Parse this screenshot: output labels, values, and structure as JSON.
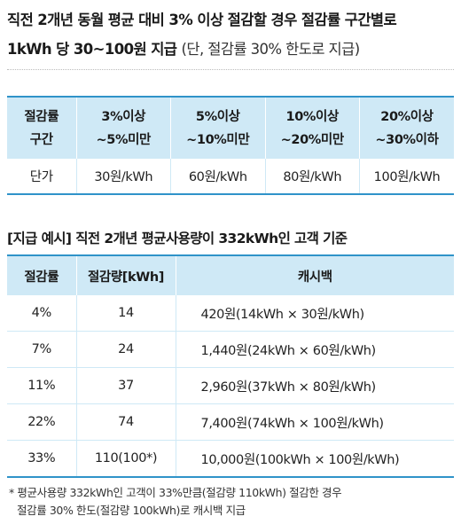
{
  "headline": {
    "bold_line1": "직전 2개년 동월 평균 대비 3% 이상 절감할 경우 절감률 구간별로",
    "bold_line2": "1kWh 당 30~100원 지급",
    "normal": "(단, 절감률 30% 한도로 지급)"
  },
  "rate_table": {
    "headers": [
      {
        "line1": "절감률",
        "line2": "구간"
      },
      {
        "line1": "3%이상",
        "line2": "~5%미만"
      },
      {
        "line1": "5%이상",
        "line2": "~10%미만"
      },
      {
        "line1": "10%이상",
        "line2": "~20%미만"
      },
      {
        "line1": "20%이상",
        "line2": "~30%이하"
      }
    ],
    "row": [
      "단가",
      "30원/kWh",
      "60원/kWh",
      "80원/kWh",
      "100원/kWh"
    ]
  },
  "example": {
    "title": "[지급 예시] 직전 2개년 평균사용량이 332kWh인 고객 기준",
    "headers": [
      "절감률",
      "절감량[kWh]",
      "캐시백"
    ],
    "rows": [
      [
        "4%",
        "14",
        "420원(14kWh × 30원/kWh)"
      ],
      [
        "7%",
        "24",
        "1,440원(24kWh × 60원/kWh)"
      ],
      [
        "11%",
        "37",
        "2,960원(37kWh × 80원/kWh)"
      ],
      [
        "22%",
        "74",
        "7,400원(74kWh × 100원/kWh)"
      ],
      [
        "33%",
        "110(100*)",
        "10,000원(100kWh × 100원/kWh)"
      ]
    ]
  },
  "footnote": {
    "line1": "* 평균사용량 332kWh인 고객이 33%만큼(절감량 110kWh) 절감한 경우",
    "line2": "절감률 30% 한도(절감량 100kWh)로 캐시백 지급"
  }
}
